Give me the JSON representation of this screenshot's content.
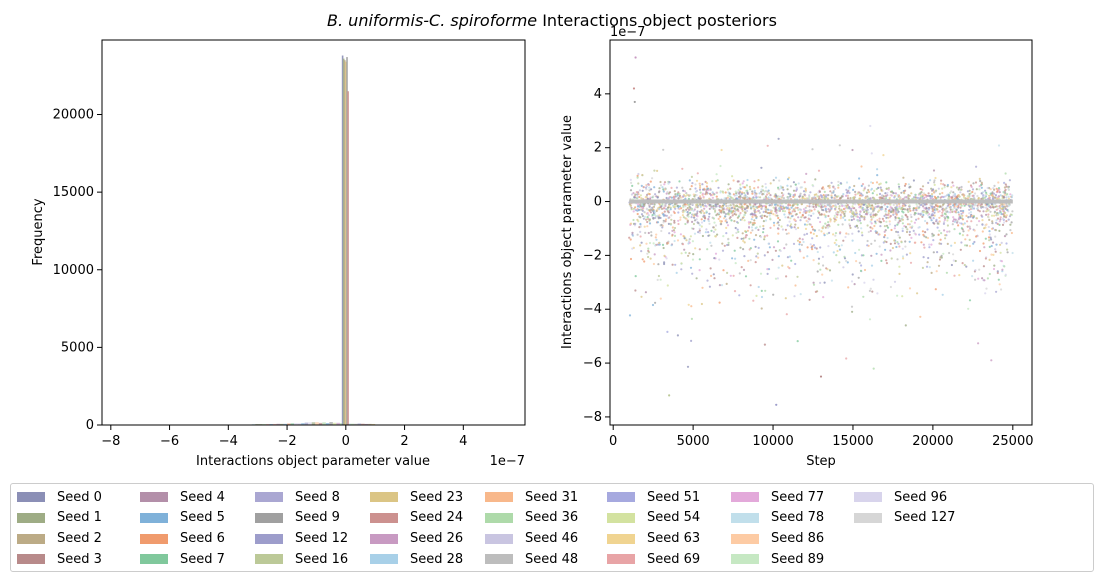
{
  "figure_title": {
    "italic": "B. uniformis-C. spiroforme",
    "rest": " Interactions object posteriors"
  },
  "chart_data": [
    {
      "type": "histogram",
      "xlabel": "Interactions object parameter value",
      "ylabel": "Frequency",
      "x_offset_label": "1e−7",
      "xlim": [
        -8.3,
        6.1
      ],
      "ylim": [
        0,
        24800
      ],
      "xticks": [
        -8,
        -6,
        -4,
        -2,
        0,
        2,
        4
      ],
      "xtick_labels": [
        "−8",
        "−6",
        "−4",
        "−2",
        "0",
        "2",
        "4"
      ],
      "yticks": [
        0,
        5000,
        10000,
        15000,
        20000
      ],
      "ytick_labels": [
        "0",
        "5000",
        "10000",
        "15000",
        "20000"
      ],
      "peak_x": 0,
      "peak_bars": [
        {
          "seed": "Seed 0",
          "value": 23800
        },
        {
          "seed": "Seed 1",
          "value": 23600
        },
        {
          "seed": "Seed 2",
          "value": 23500
        },
        {
          "seed": "Seed 23",
          "value": 23400
        },
        {
          "seed": "Seed 9",
          "value": 23700
        },
        {
          "seed": "Seed 24",
          "value": 21500
        }
      ],
      "grid": false
    },
    {
      "type": "scatter",
      "xlabel": "Step",
      "ylabel": "Interactions object parameter value",
      "y_offset_label": "1e−7",
      "xlim": [
        -200,
        26200
      ],
      "ylim": [
        -8.3,
        6.0
      ],
      "xticks": [
        0,
        5000,
        10000,
        15000,
        20000,
        25000
      ],
      "xtick_labels": [
        "0",
        "5000",
        "10000",
        "15000",
        "20000",
        "25000"
      ],
      "yticks": [
        -8,
        -6,
        -4,
        -2,
        0,
        2,
        4
      ],
      "ytick_labels": [
        "−8",
        "−6",
        "−4",
        "−2",
        "0",
        "2",
        "4"
      ],
      "step_range": [
        1000,
        25000
      ],
      "center_line_value": 0,
      "grid": false
    }
  ],
  "legend": {
    "placement": "bottom",
    "columns": 9,
    "items": [
      {
        "label": "Seed 0",
        "color": "#8b8fb6"
      },
      {
        "label": "Seed 1",
        "color": "#9eac85"
      },
      {
        "label": "Seed 2",
        "color": "#bcab86"
      },
      {
        "label": "Seed 3",
        "color": "#b88a8a"
      },
      {
        "label": "Seed 4",
        "color": "#b38fa9"
      },
      {
        "label": "Seed 5",
        "color": "#7fb1d9"
      },
      {
        "label": "Seed 6",
        "color": "#f09b6d"
      },
      {
        "label": "Seed 7",
        "color": "#80c89c"
      },
      {
        "label": "Seed 8",
        "color": "#aaa7d2"
      },
      {
        "label": "Seed 9",
        "color": "#a0a0a0"
      },
      {
        "label": "Seed 12",
        "color": "#9d9dcb"
      },
      {
        "label": "Seed 16",
        "color": "#bcc998"
      },
      {
        "label": "Seed 23",
        "color": "#dbc585"
      },
      {
        "label": "Seed 24",
        "color": "#cc918f"
      },
      {
        "label": "Seed 26",
        "color": "#c89ac2"
      },
      {
        "label": "Seed 28",
        "color": "#a8d0e8"
      },
      {
        "label": "Seed 31",
        "color": "#f8b88b"
      },
      {
        "label": "Seed 36",
        "color": "#aedaaa"
      },
      {
        "label": "Seed 46",
        "color": "#c9c5e1"
      },
      {
        "label": "Seed 48",
        "color": "#bdbdbd"
      },
      {
        "label": "Seed 51",
        "color": "#a6a9df"
      },
      {
        "label": "Seed 54",
        "color": "#d3e2a0"
      },
      {
        "label": "Seed 63",
        "color": "#f0d491"
      },
      {
        "label": "Seed 69",
        "color": "#e8a4a6"
      },
      {
        "label": "Seed 77",
        "color": "#e3a9da"
      },
      {
        "label": "Seed 78",
        "color": "#c1dfeb"
      },
      {
        "label": "Seed 86",
        "color": "#fdcba4"
      },
      {
        "label": "Seed 89",
        "color": "#c6e8c3"
      },
      {
        "label": "Seed 96",
        "color": "#d8d4ec"
      },
      {
        "label": "Seed 127",
        "color": "#d6d6d6"
      }
    ]
  }
}
